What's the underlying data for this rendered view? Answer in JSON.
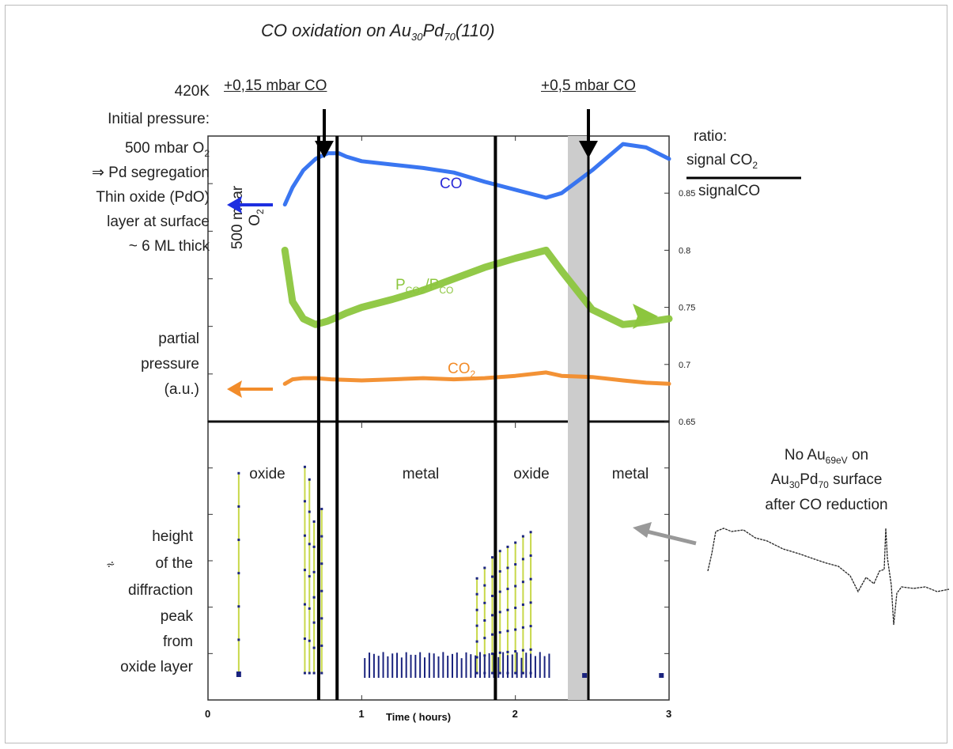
{
  "title": {
    "main": "CO oxidation on Au",
    "sub1": "30",
    "mid": "Pd",
    "sub2": "70",
    "end": "(110)"
  },
  "left_notes": {
    "temp": "420K",
    "line1": "Initial pressure:",
    "line2_main": "500 mbar O",
    "line2_sub": "2",
    "line3": "⇒ Pd segregation",
    "line4": "Thin oxide (PdO)",
    "line5": "layer at surface",
    "line6": "~ 6 ML thick",
    "pp1": "partial",
    "pp2": "pressure",
    "pp3": "(a.u.)",
    "h1": "height",
    "h2": "of the",
    "h3": "diffraction",
    "h4": "peak",
    "h5": "from",
    "h6": "oxide layer",
    "glyph": "⩫"
  },
  "annotations": {
    "co1": "+0,15 mbar CO",
    "co2": "+0,5 mbar CO",
    "o2_main": "500 mbar",
    "o2_line2": "O",
    "o2_sub": "2"
  },
  "right_label": {
    "l1": "ratio:",
    "l2_main": "signal CO",
    "l2_sub": "2",
    "l3": "signalCO"
  },
  "auger_note": {
    "l1_a": "No Au",
    "l1_sub": "69eV",
    "l1_b": " on",
    "l2_a": "Au",
    "l2_s1": "30",
    "l2_b": "Pd",
    "l2_s2": "70",
    "l2_c": " surface",
    "l3": "after CO reduction"
  },
  "colors": {
    "co": "#2f6ff0",
    "co_label": "#2a2ad8",
    "ratio": "#8cc63e",
    "co2": "#f28c2a",
    "diffraction": "#1a237e",
    "stem": "#c8d84a",
    "arrow_blue": "#1d2ee0",
    "arrow_green": "#8cc63e",
    "arrow_orange": "#f28c2a",
    "gray_band": "#cccccc"
  },
  "chart_data": [
    {
      "type": "line",
      "panel": "top",
      "xlabel": "Time ( hours)",
      "xlim": [
        0,
        3
      ],
      "right_axis_ticks": [
        "0.85",
        "0.8",
        "0.75",
        "0.7",
        "0.65"
      ],
      "right_ylim": [
        0.65,
        0.9
      ],
      "series": [
        {
          "name": "CO",
          "x": [
            0.5,
            0.55,
            0.62,
            0.7,
            0.78,
            0.85,
            0.9,
            1.0,
            1.2,
            1.4,
            1.6,
            1.8,
            2.0,
            2.2,
            2.3,
            2.5,
            2.7,
            2.85,
            3.0
          ],
          "y": [
            0.84,
            0.855,
            0.87,
            0.88,
            0.885,
            0.885,
            0.882,
            0.878,
            0.875,
            0.872,
            0.868,
            0.86,
            0.853,
            0.846,
            0.85,
            0.87,
            0.893,
            0.89,
            0.88
          ]
        },
        {
          "name": "P<sub>CO2</sub>/P<sub>CO</sub>",
          "label_main": "P",
          "label_s1": "CO2",
          "label_mid": "/P",
          "label_s2": "CO",
          "x": [
            0.5,
            0.55,
            0.62,
            0.7,
            0.78,
            0.85,
            0.9,
            1.0,
            1.2,
            1.4,
            1.6,
            1.8,
            2.0,
            2.2,
            2.3,
            2.5,
            2.7,
            2.85,
            3.0
          ],
          "y": [
            0.8,
            0.755,
            0.74,
            0.735,
            0.738,
            0.742,
            0.745,
            0.75,
            0.757,
            0.765,
            0.775,
            0.785,
            0.793,
            0.8,
            0.782,
            0.748,
            0.735,
            0.737,
            0.74
          ]
        },
        {
          "name": "CO",
          "label_main": "CO",
          "label_sub": "2",
          "x": [
            0.5,
            0.55,
            0.62,
            0.7,
            0.8,
            1.0,
            1.2,
            1.4,
            1.6,
            1.8,
            2.0,
            2.2,
            2.3,
            2.5,
            2.7,
            2.85,
            3.0
          ],
          "y": [
            0.683,
            0.687,
            0.688,
            0.688,
            0.687,
            0.686,
            0.687,
            0.688,
            0.687,
            0.688,
            0.69,
            0.693,
            0.69,
            0.689,
            0.686,
            0.684,
            0.683
          ]
        }
      ]
    },
    {
      "type": "scatter",
      "panel": "bottom",
      "name": "diffraction peak height",
      "xlim": [
        0,
        3
      ],
      "xticks": [
        "0",
        "1",
        "2",
        "3"
      ],
      "region_labels": [
        "oxide",
        "metal",
        "oxide",
        "metal"
      ],
      "peaks": [
        {
          "x": 0.2,
          "h": 0.95
        },
        {
          "x": 0.63,
          "h": 0.98
        },
        {
          "x": 0.66,
          "h": 0.92
        },
        {
          "x": 0.69,
          "h": 0.72
        },
        {
          "x": 0.74,
          "h": 0.78
        },
        {
          "x": 1.75,
          "h": 0.45
        },
        {
          "x": 1.8,
          "h": 0.5
        },
        {
          "x": 1.85,
          "h": 0.55
        },
        {
          "x": 1.9,
          "h": 0.58
        },
        {
          "x": 1.95,
          "h": 0.6
        },
        {
          "x": 2.0,
          "h": 0.62
        },
        {
          "x": 2.05,
          "h": 0.65
        },
        {
          "x": 2.1,
          "h": 0.67
        }
      ],
      "baseline_points": [
        2.45,
        2.95
      ]
    }
  ]
}
